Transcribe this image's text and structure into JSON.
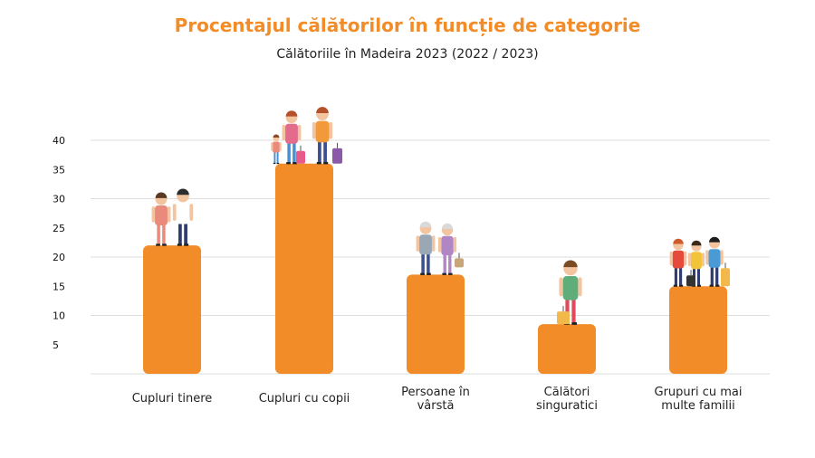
{
  "chart_data": {
    "type": "bar",
    "title": "Procentajul călătorilor în funcție de categorie",
    "subtitle": "Călătoriile în Madeira 2023 (2022 / 2023)",
    "categories": [
      [
        "Cupluri tinere"
      ],
      [
        "Cupluri cu copii"
      ],
      [
        "Persoane în",
        "vârstă"
      ],
      [
        "Călători",
        "singuratici"
      ],
      [
        "Grupuri cu mai",
        "multe familii"
      ]
    ],
    "values": [
      22,
      36,
      17,
      8.5,
      15
    ],
    "yticks": [
      5,
      10,
      15,
      20,
      25,
      30,
      35,
      40
    ],
    "ylim": [
      0,
      40
    ],
    "bar_color": "#F28C28",
    "grid": true,
    "xlabel": "",
    "ylabel": ""
  },
  "colors": {
    "accent": "#F28C28",
    "grid": "#dddddd"
  }
}
